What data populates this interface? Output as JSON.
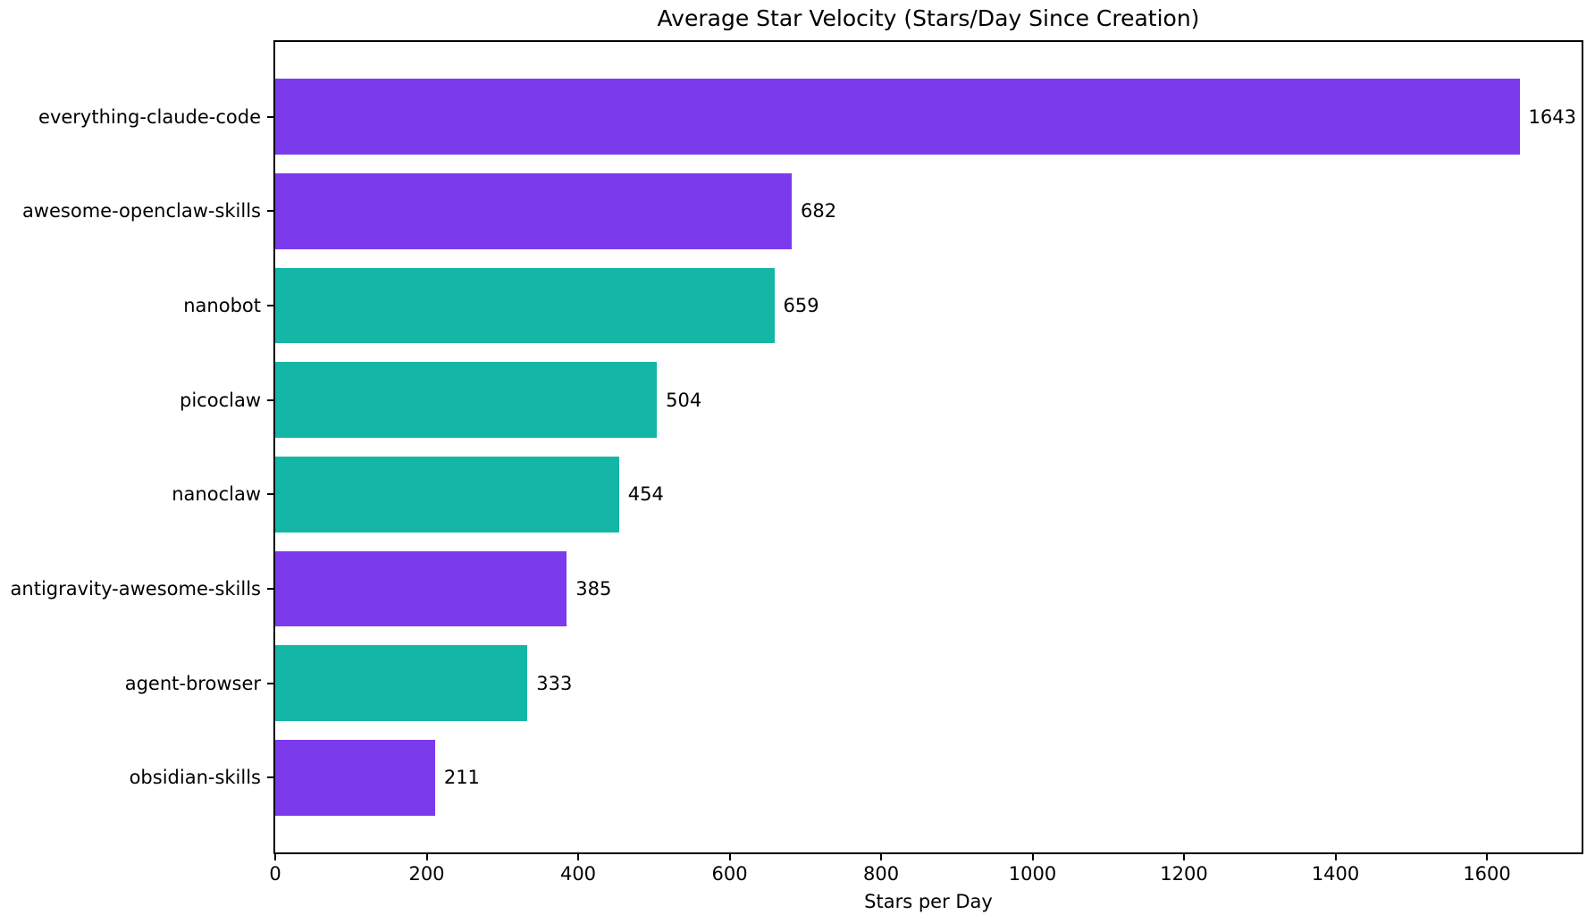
{
  "title": "Average Star Velocity (Stars/Day Since Creation)",
  "chart_data": {
    "type": "bar",
    "orientation": "horizontal",
    "title": "Average Star Velocity (Stars/Day Since Creation)",
    "xlabel": "Stars per Day",
    "ylabel": "",
    "categories": [
      "everything-claude-code",
      "awesome-openclaw-skills",
      "nanobot",
      "picoclaw",
      "nanoclaw",
      "antigravity-awesome-skills",
      "agent-browser",
      "obsidian-skills"
    ],
    "values": [
      1643,
      682,
      659,
      504,
      454,
      385,
      333,
      211
    ],
    "value_labels": [
      "1643",
      "682",
      "659",
      "504",
      "454",
      "385",
      "333",
      "211"
    ],
    "bar_colors": [
      "#7C3AED",
      "#7C3AED",
      "#14B7A6",
      "#14B7A6",
      "#14B7A6",
      "#7C3AED",
      "#14B7A6",
      "#7C3AED"
    ],
    "colors": {
      "purple": "#7C3AED",
      "teal": "#14B7A6",
      "text": "#000000",
      "background": "#FFFFFF"
    },
    "xlim": [
      0,
      1725
    ],
    "xticks": [
      0,
      200,
      400,
      600,
      800,
      1000,
      1200,
      1400,
      1600
    ],
    "grid": false,
    "legend": null,
    "bar_height_fraction": 0.8,
    "axis_margin_fraction": 0.05
  }
}
